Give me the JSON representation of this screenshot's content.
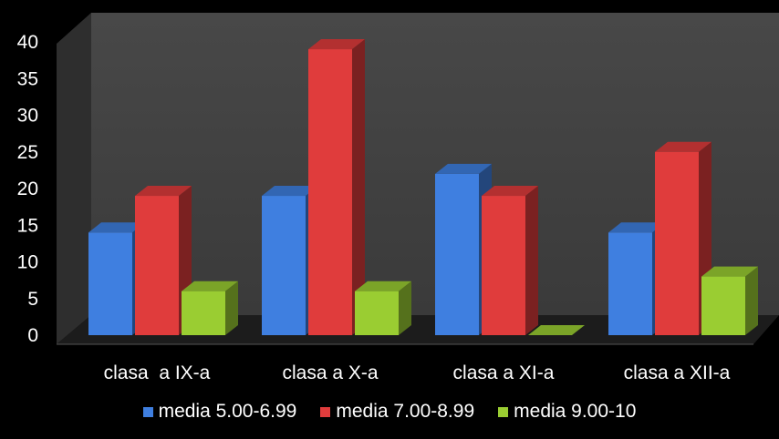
{
  "chart_data": {
    "type": "bar",
    "style": "3d-clustered-column",
    "categories": [
      "clasa  a IX-a",
      "clasa a X-a",
      "clasa a XI-a",
      "clasa a XII-a"
    ],
    "series": [
      {
        "name": "media 5.00-6.99",
        "values": [
          14,
          19,
          22,
          14
        ],
        "color": "#3f7fe0"
      },
      {
        "name": "media 7.00-8.99",
        "values": [
          19,
          39,
          19,
          25
        ],
        "color": "#e03c3c"
      },
      {
        "name": "media 9.00-10",
        "values": [
          6,
          6,
          0,
          8
        ],
        "color": "#9acd32"
      }
    ],
    "ylim": [
      0,
      40
    ],
    "yticks": [
      "0",
      "5",
      "10",
      "15",
      "20",
      "25",
      "30",
      "35",
      "40"
    ],
    "grid": false,
    "legend_position": "bottom",
    "background": "#000000",
    "wall_color": "#404040"
  }
}
